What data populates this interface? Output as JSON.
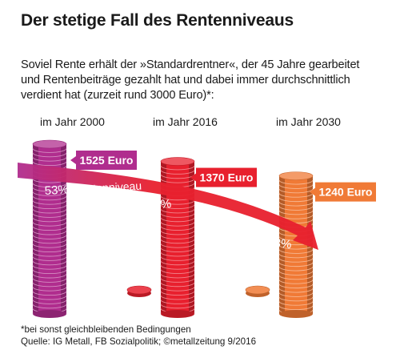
{
  "header": {
    "title": "Der stetige Fall des Rentenniveaus",
    "subtitle": "Soviel Rente erhält der »Standardrentner«, der 45 Jahre gearbeitet\nund Rentenbeiträge gezahlt hat und dabei immer durchschnittlich\nverdient hat (zurzeit rund 3000 Euro)*:"
  },
  "chart_data": {
    "type": "bar",
    "categories": [
      "im Jahr 2000",
      "im Jahr 2016",
      "im Jahr 2030"
    ],
    "values": [
      1525,
      1370,
      1240
    ],
    "value_labels": [
      "1525 Euro",
      "1370 Euro",
      "1240 Euro"
    ],
    "ylim": [
      0,
      1525
    ],
    "colors": [
      "#b02d8e",
      "#e8202e",
      "#f07a36"
    ],
    "overlay_series": {
      "values": [
        53,
        47.5,
        43
      ],
      "labels": [
        "53%",
        "47,5%",
        "43%"
      ],
      "label_suffix": "Rentenniveau"
    }
  },
  "footer": {
    "footnote": "*bei sonst gleichbleibenden Bedingungen",
    "source": "Quelle: IG Metall, FB Sozialpolitik; ©metallzeitung 9/2016"
  }
}
